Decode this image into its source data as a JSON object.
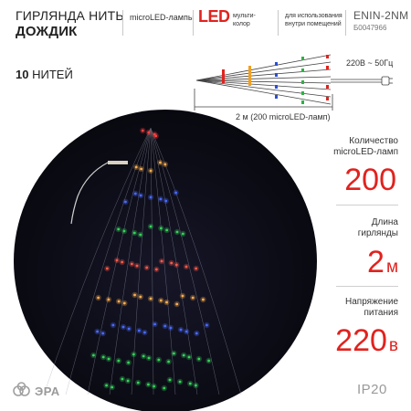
{
  "header": {
    "title_line1": "ГИРЛЯНДА НИТЬ",
    "title_line2": "ДОЖДИК",
    "microled": "microLED-лампы",
    "led_logo": "LED",
    "multicolor_line1": "мульти-",
    "multicolor_line2": "колор",
    "usage_line1": "для использования",
    "usage_line2": "внутри помещений",
    "model": "ENIN-2NM",
    "code": "Б0047966"
  },
  "threads": {
    "count": "10",
    "label": "НИТЕЙ"
  },
  "scheme": {
    "voltage": "220В ~ 50Гц",
    "length": "2 м (200 microLED-ламп)"
  },
  "specs": [
    {
      "label_line1": "Количество",
      "label_line2": "microLED-ламп",
      "value": "200",
      "unit": ""
    },
    {
      "label_line1": "Длина",
      "label_line2": "гирлянды",
      "value": "2",
      "unit": "м"
    },
    {
      "label_line1": "Напряжение",
      "label_line2": "питания",
      "value": "220",
      "unit": "в"
    }
  ],
  "footer": {
    "brand": "ЭРА",
    "ip": "IP20"
  },
  "colors": {
    "accent": "#e1221e",
    "photo_bg": "#0a0a12"
  }
}
